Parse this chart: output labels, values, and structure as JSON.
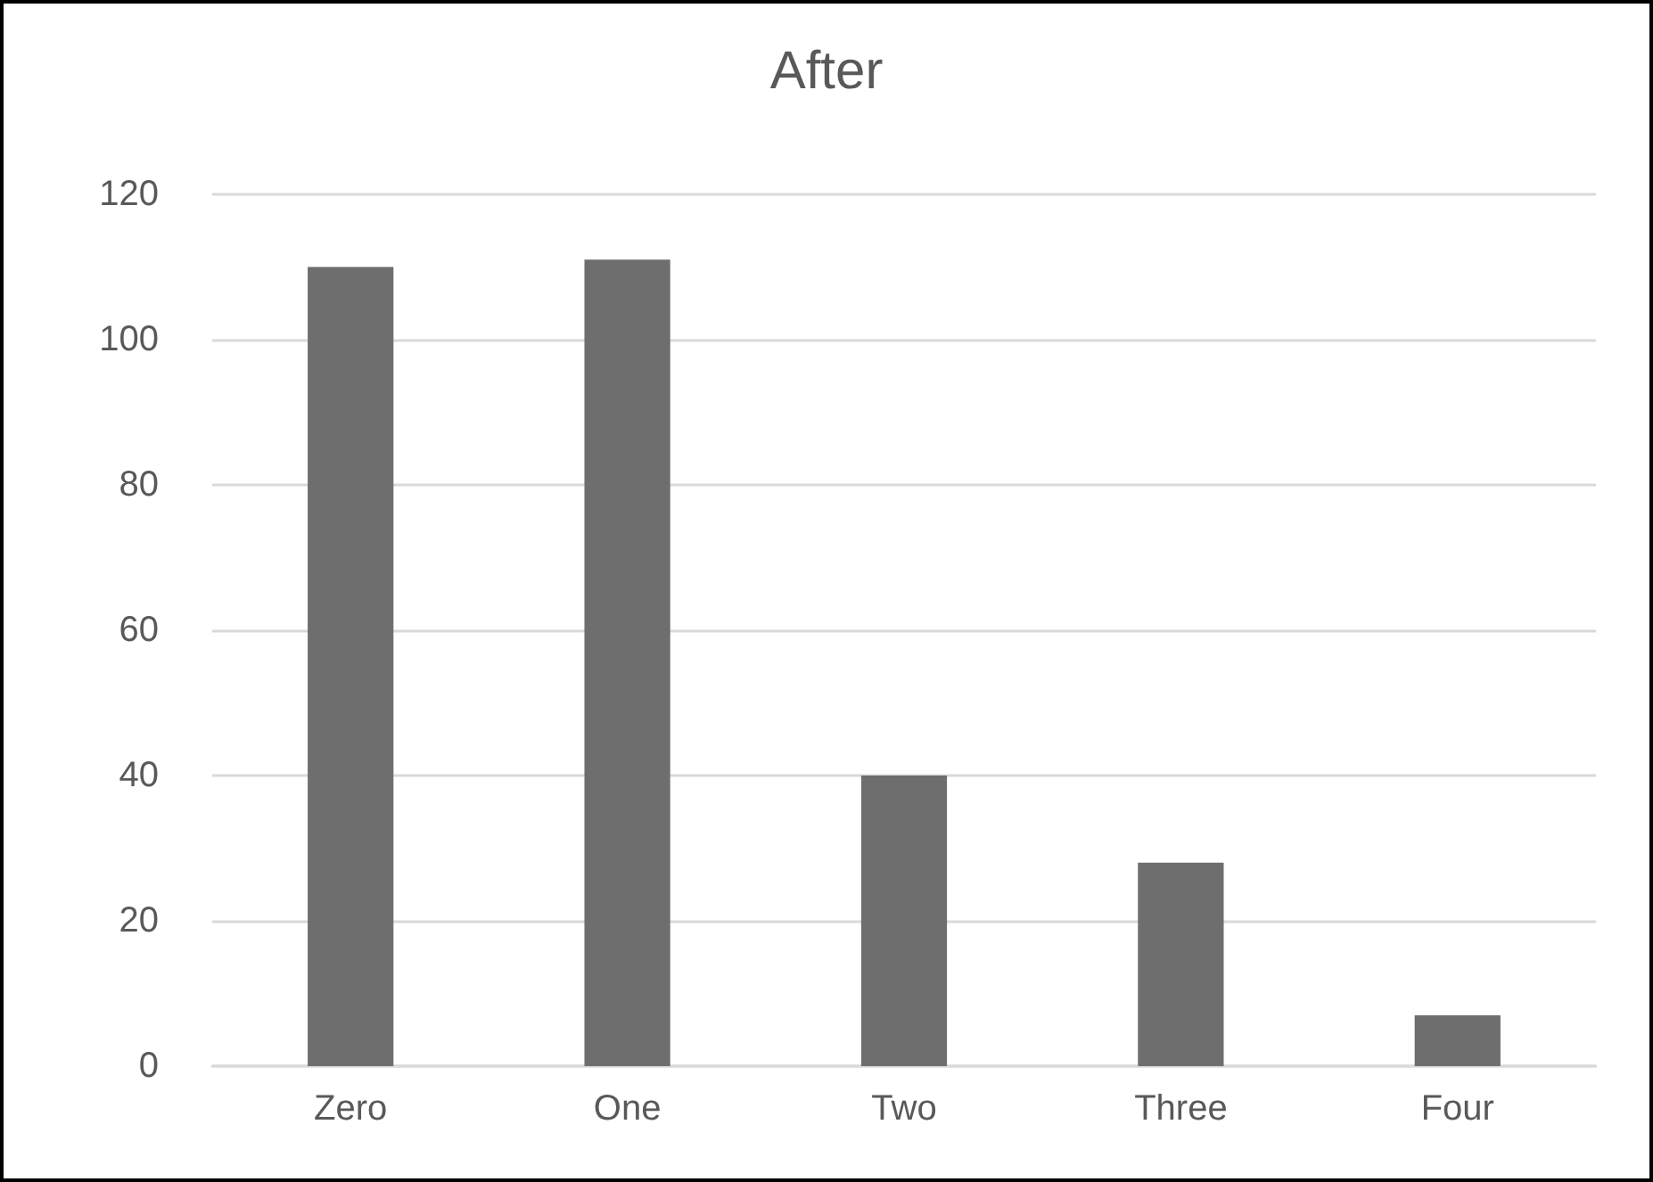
{
  "chart_data": {
    "type": "bar",
    "title": "After",
    "categories": [
      "Zero",
      "One",
      "Two",
      "Three",
      "Four"
    ],
    "values": [
      110,
      111,
      40,
      28,
      7
    ],
    "color": "#6e6e6e",
    "ylim": [
      0,
      120
    ],
    "yticks": [
      0,
      20,
      40,
      60,
      80,
      100,
      120
    ],
    "grid": "y"
  }
}
